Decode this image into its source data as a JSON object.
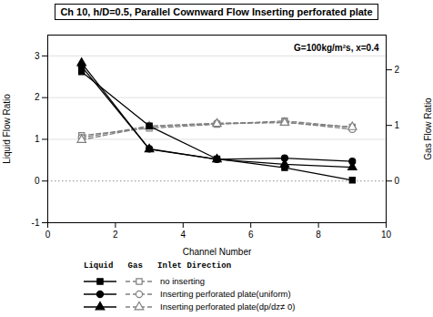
{
  "chart_data": {
    "type": "line",
    "title": "Ch 10, h/D=0.5, Parallel Cownward Flow Inserting perforated plate",
    "xlabel": "Channel Number",
    "ylabel": "Liquid Flow Ratio",
    "y2label": "Gas Flow Ratio",
    "annotations": [
      "G=100kg/m²s, x=0.4"
    ],
    "legend_title": "Liquid   Gas   Inlet Direction",
    "x": [
      1,
      3,
      5,
      7,
      9
    ],
    "series": [
      {
        "name": "no inserting",
        "color": "#000000",
        "marker": "square",
        "line_style": "solid",
        "values": [
          2.62,
          1.32,
          0.53,
          0.32,
          0.02
        ]
      },
      {
        "name": "Inserting perforated plate(uniform)",
        "color": "#000000",
        "marker": "circle",
        "line_style": "solid",
        "values": [
          2.75,
          0.77,
          0.52,
          0.55,
          0.47
        ]
      },
      {
        "name": "Inserting perforated plate(dp/dz≠ 0)",
        "color": "#000000",
        "marker": "triangle",
        "line_style": "solid",
        "values": [
          2.83,
          0.76,
          0.52,
          0.4,
          0.33
        ]
      },
      {
        "name": "no inserting",
        "color": "#808080",
        "marker": "open square",
        "line_style": "dashed",
        "axis": "y2",
        "values": [
          0.82,
          0.95,
          1.02,
          1.08,
          0.97
        ]
      },
      {
        "name": "Inserting perforated plate(uniform)",
        "color": "#808080",
        "marker": "open circle",
        "line_style": "dashed",
        "axis": "y2",
        "values": [
          0.78,
          0.99,
          1.04,
          1.06,
          0.93
        ]
      },
      {
        "name": "Inserting perforated plate(dp/dz≠ 0)",
        "color": "#808080",
        "marker": "open triangle",
        "line_style": "dashed",
        "axis": "y2",
        "values": [
          0.74,
          0.98,
          1.03,
          1.05,
          0.97
        ]
      }
    ],
    "xlim": [
      0,
      10
    ],
    "xticks": [
      0,
      2,
      4,
      6,
      8,
      10
    ],
    "ylim": [
      -1,
      3.5
    ],
    "yticks": [
      -1,
      0,
      1,
      2,
      3
    ],
    "y2lim": [
      -0.75,
      2.625
    ],
    "y2ticks": [
      0,
      1,
      2
    ],
    "grid": true,
    "legend": "bottom"
  }
}
